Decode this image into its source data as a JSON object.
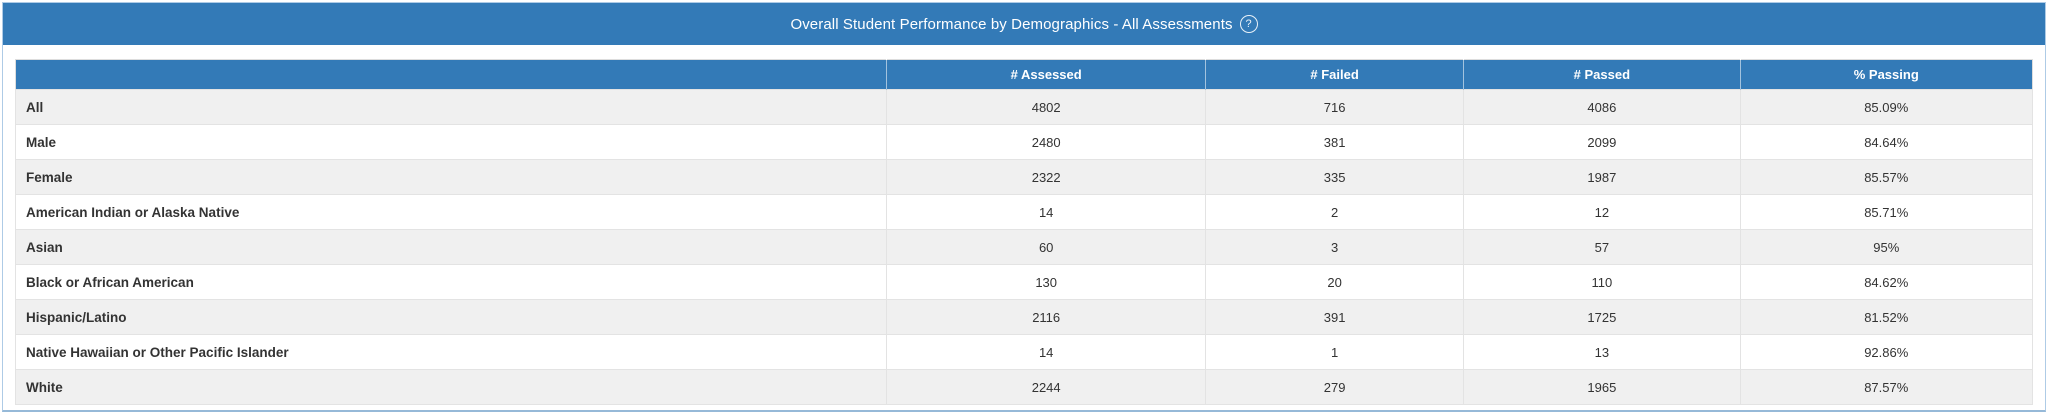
{
  "panel": {
    "title": "Overall Student Performance by Demographics - All Assessments",
    "help_icon": "?"
  },
  "colors": {
    "header_blue": "#337ab7",
    "panel_border": "#aecbe6",
    "row_alt_gray": "#f0f0f0",
    "cell_border": "#e3e3e3",
    "text": "#333333"
  },
  "table": {
    "columns": [
      "",
      "# Assessed",
      "# Failed",
      "# Passed",
      "% Passing"
    ],
    "rows": [
      {
        "label": "All",
        "assessed": "4802",
        "failed": "716",
        "passed": "4086",
        "passing": "85.09%"
      },
      {
        "label": "Male",
        "assessed": "2480",
        "failed": "381",
        "passed": "2099",
        "passing": "84.64%"
      },
      {
        "label": "Female",
        "assessed": "2322",
        "failed": "335",
        "passed": "1987",
        "passing": "85.57%"
      },
      {
        "label": "American Indian or Alaska Native",
        "assessed": "14",
        "failed": "2",
        "passed": "12",
        "passing": "85.71%"
      },
      {
        "label": "Asian",
        "assessed": "60",
        "failed": "3",
        "passed": "57",
        "passing": "95%"
      },
      {
        "label": "Black or African American",
        "assessed": "130",
        "failed": "20",
        "passed": "110",
        "passing": "84.62%"
      },
      {
        "label": "Hispanic/Latino",
        "assessed": "2116",
        "failed": "391",
        "passed": "1725",
        "passing": "81.52%"
      },
      {
        "label": "Native Hawaiian or Other Pacific Islander",
        "assessed": "14",
        "failed": "1",
        "passed": "13",
        "passing": "92.86%"
      },
      {
        "label": "White",
        "assessed": "2244",
        "failed": "279",
        "passed": "1965",
        "passing": "87.57%"
      }
    ]
  }
}
